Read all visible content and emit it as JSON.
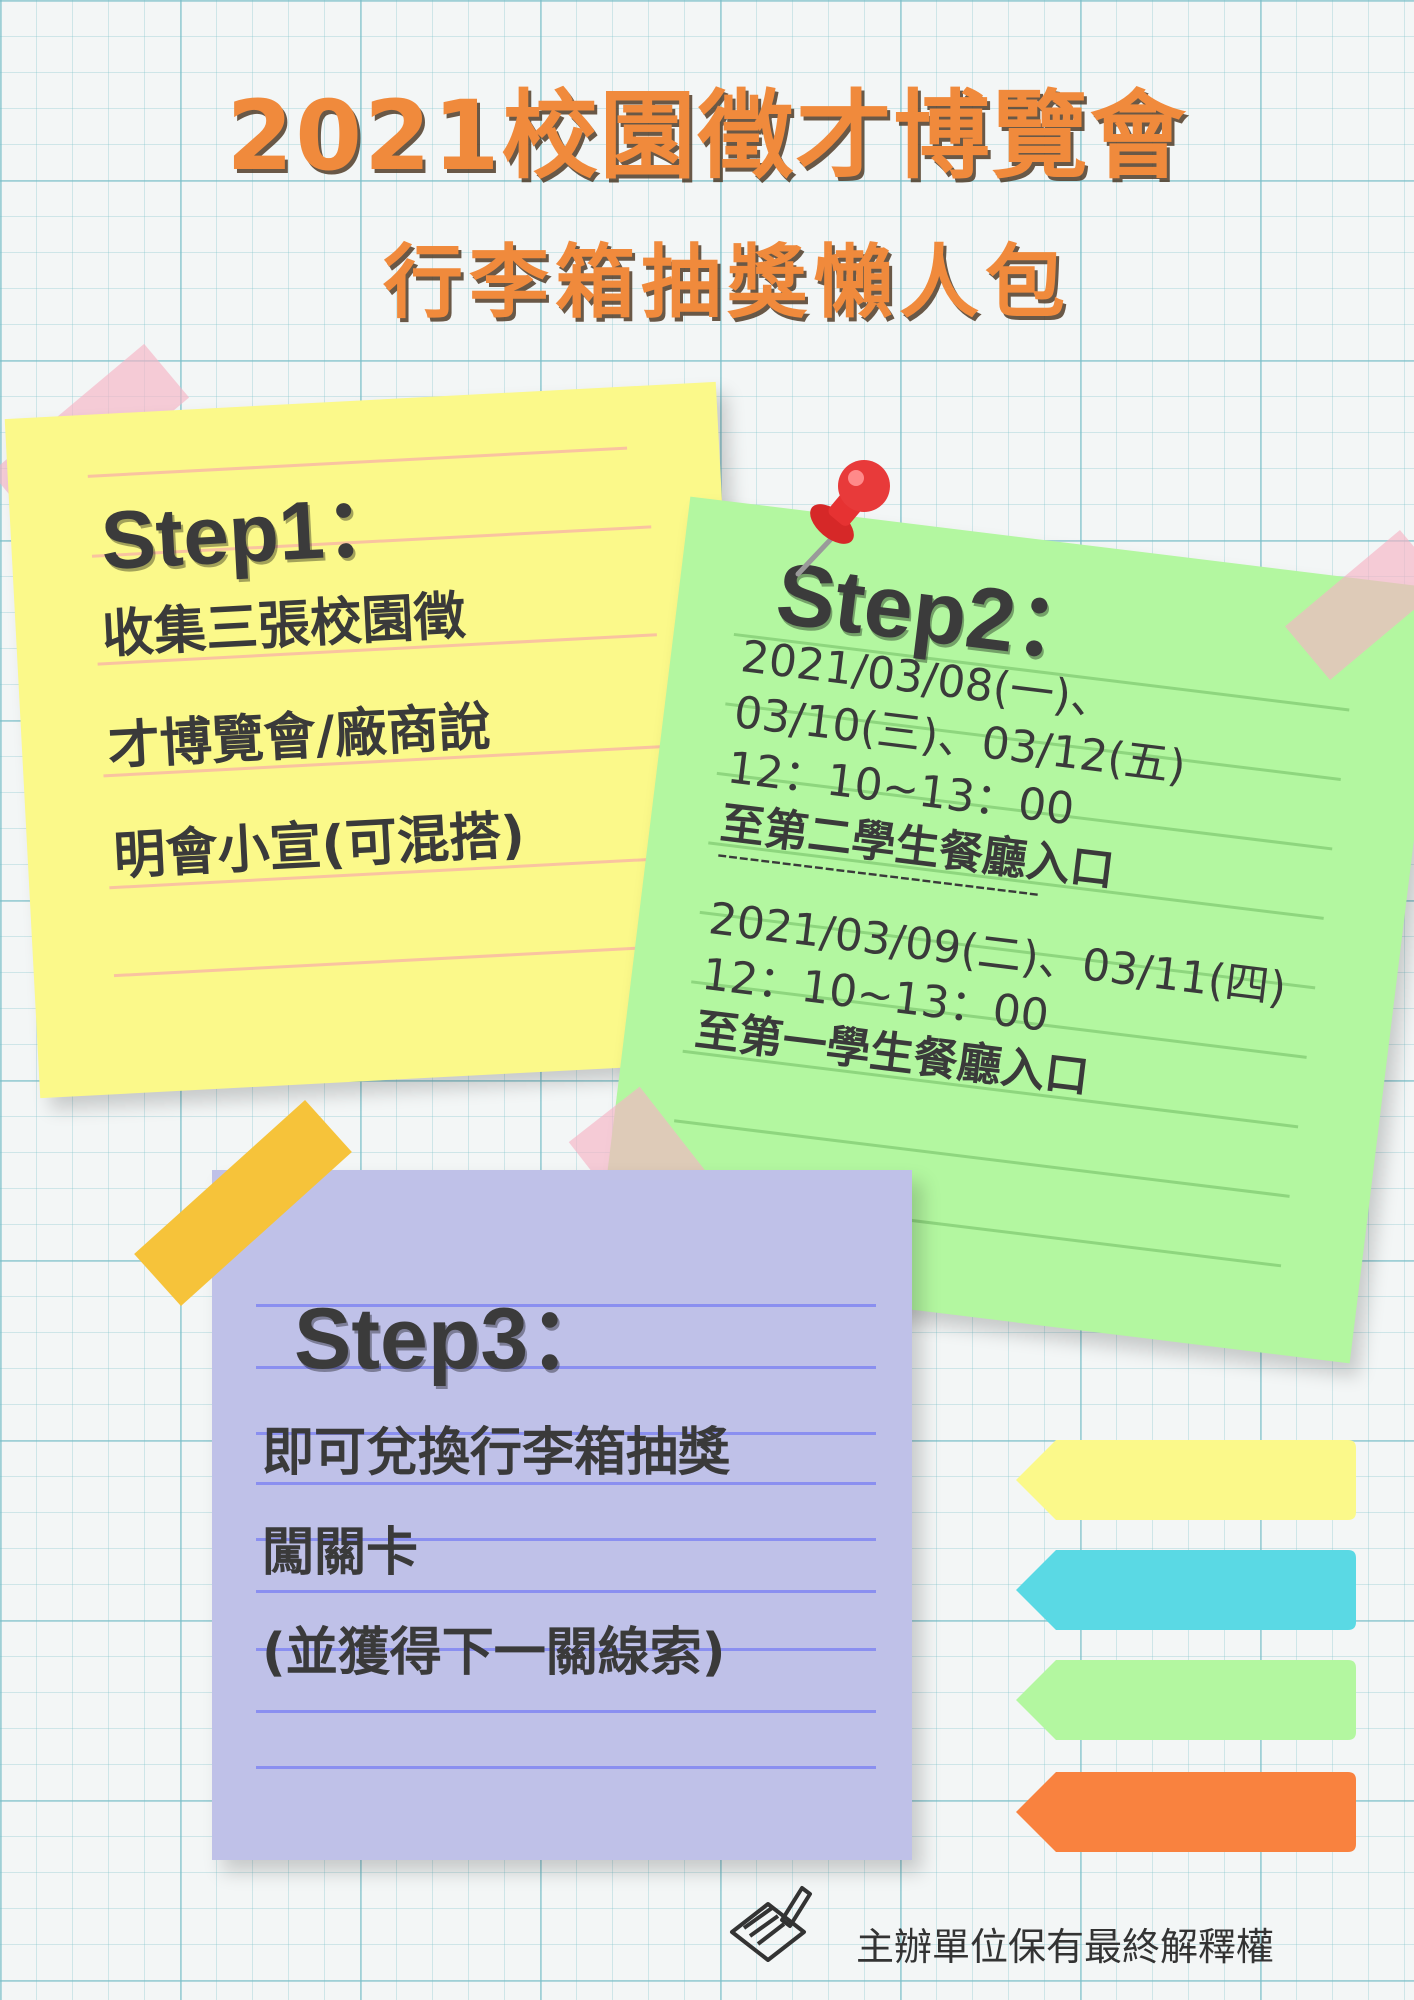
{
  "header": {
    "title": "2021校園徵才博覽會",
    "subtitle": "行李箱抽獎懶人包"
  },
  "step1": {
    "heading": "Step1：",
    "lines": [
      "收集三張校園徵",
      "才博覽會/廠商說",
      "明會小宣(可混搭)"
    ]
  },
  "step2": {
    "heading": "Step2：",
    "lines": [
      "2021/03/08(一)、",
      "03/10(三)、03/12(五)",
      "12：10~13：00",
      "至第二學生餐廳入口",
      "------------------------------",
      "2021/03/09(二)、03/11(四)",
      "12：10~13：00",
      "至第一學生餐廳入口"
    ]
  },
  "step3": {
    "heading": "Step3：",
    "lines": [
      "即可兌換行李箱抽獎",
      "闖關卡",
      "(並獲得下一關線索)"
    ]
  },
  "tabs": [
    "#fbf98a",
    "#5ad9e4",
    "#b3f7a0",
    "#f9823f"
  ],
  "footer": {
    "text": "主辦單位保有最終解釋權"
  },
  "icons": [
    "pushpin-icon",
    "notepad-pen-icon"
  ],
  "colors": {
    "title": "#f08a3c",
    "yellow": "#fbf98a",
    "green": "#b3f7a0",
    "purple": "#bfc1e8"
  }
}
